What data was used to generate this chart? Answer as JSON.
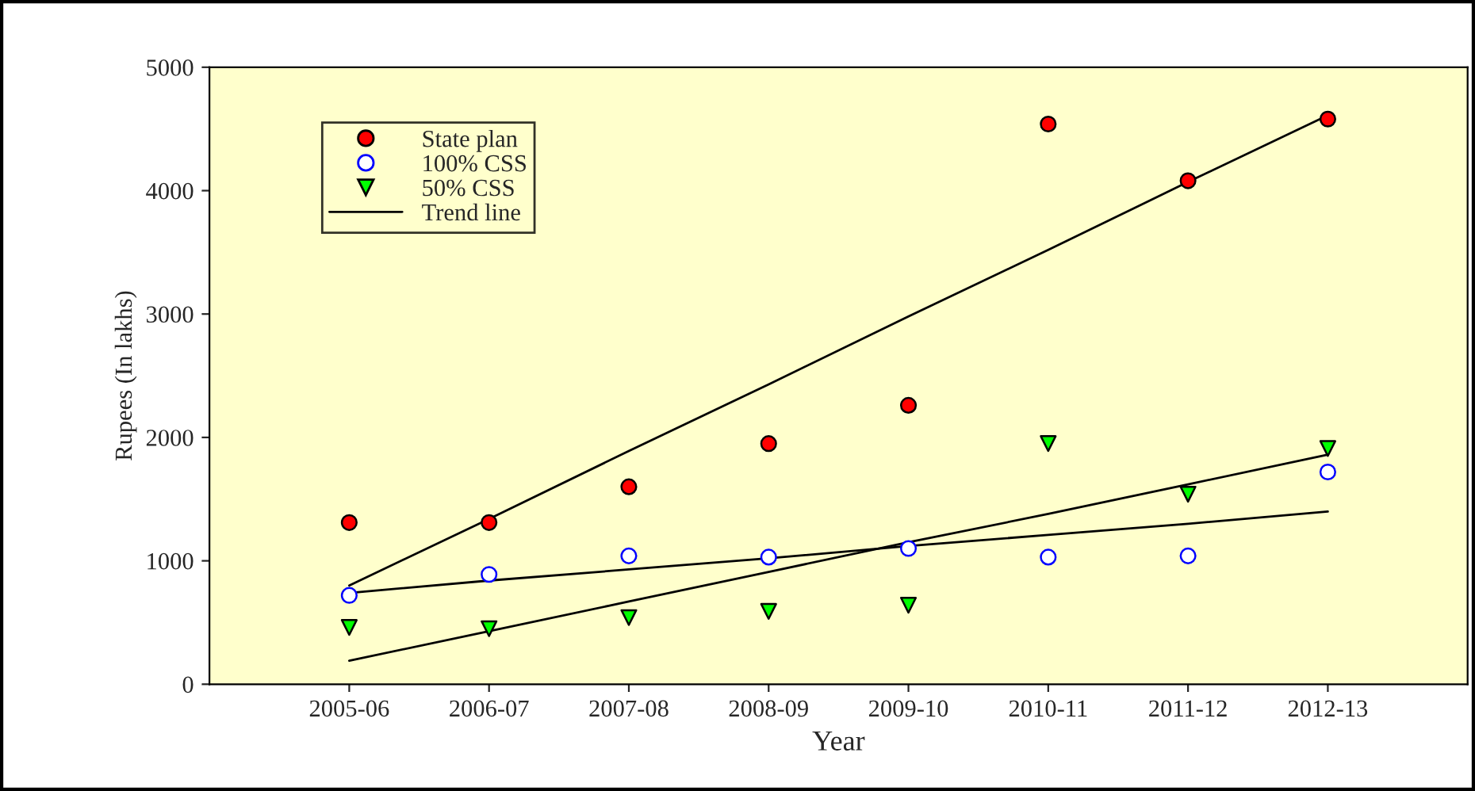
{
  "chart_data": {
    "type": "scatter",
    "xlabel": "Year",
    "ylabel": "Rupees (In lakhs)",
    "categories": [
      "2005-06",
      "2006-07",
      "2007-08",
      "2008-09",
      "2009-10",
      "2010-11",
      "2011-12",
      "2012-13"
    ],
    "series": [
      {
        "name": "State plan",
        "color": "#ff0000",
        "marker": "circle",
        "values": [
          1310,
          1310,
          1600,
          1950,
          2260,
          4540,
          4080,
          4580
        ]
      },
      {
        "name": "100% CSS",
        "color": "#ffffff",
        "marker": "circle",
        "values": [
          720,
          890,
          1040,
          1030,
          1100,
          1030,
          1040,
          1720
        ]
      },
      {
        "name": "50% CSS",
        "color": "#00ff00",
        "marker": "triangle",
        "values": [
          460,
          450,
          540,
          590,
          640,
          1950,
          1540,
          1910
        ]
      },
      {
        "name": "Trend line",
        "type": "line",
        "color": "#000000",
        "values": [
          800,
          1340,
          1890,
          2430,
          2980,
          3520,
          4070,
          4610
        ]
      },
      {
        "type": "line",
        "color": "#000000",
        "values": [
          740,
          840,
          930,
          1020,
          1120,
          1210,
          1300,
          1400
        ]
      },
      {
        "type": "line",
        "color": "#000000",
        "values": [
          190,
          430,
          670,
          910,
          1150,
          1380,
          1620,
          1860
        ]
      }
    ],
    "ylim": [
      0,
      5000
    ],
    "yticks": [
      0,
      1000,
      2000,
      3000,
      4000,
      5000
    ],
    "grid": false,
    "legend": "top left"
  }
}
